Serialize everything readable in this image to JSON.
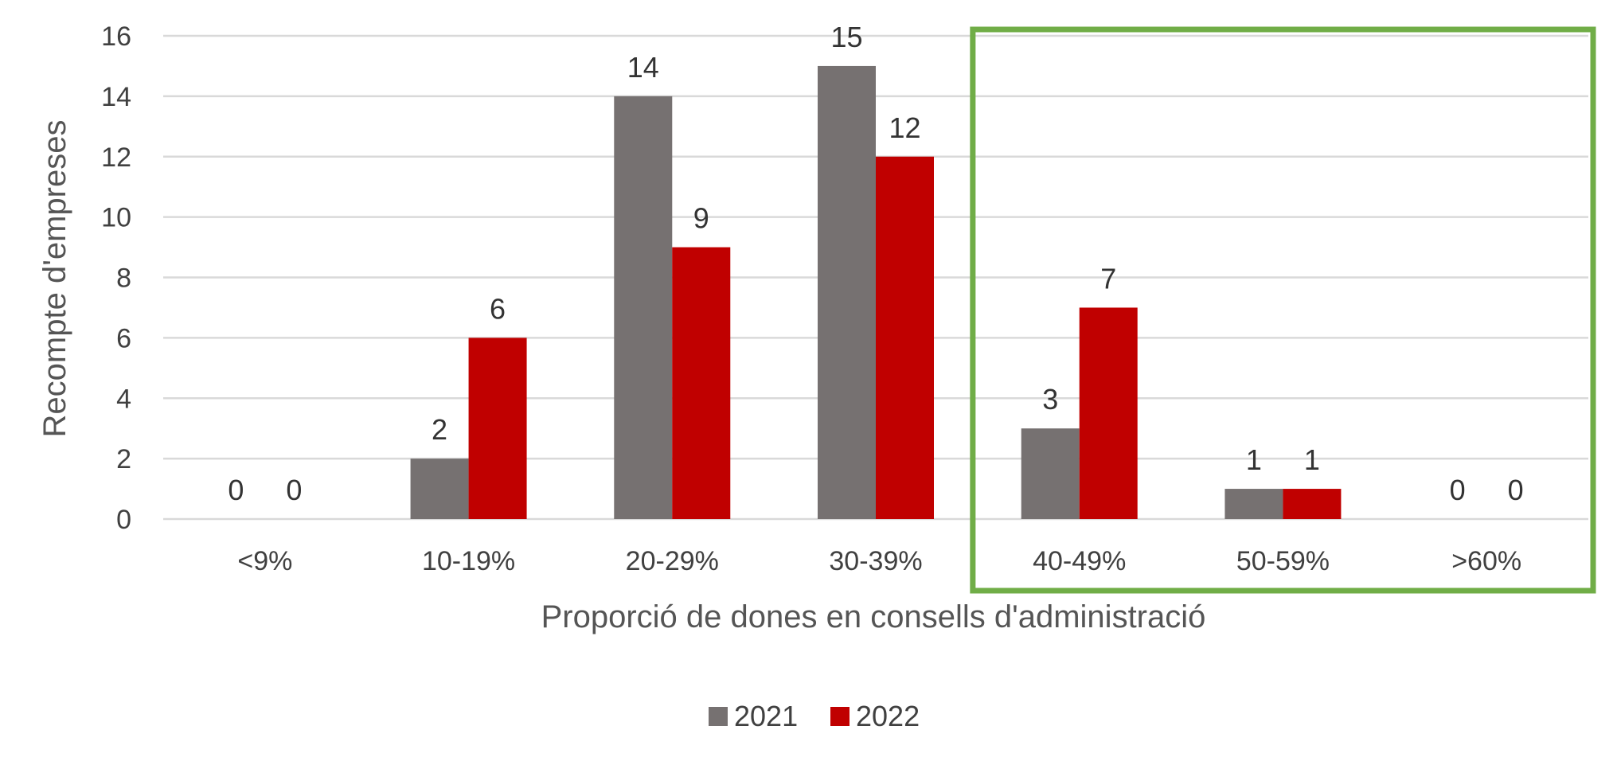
{
  "chart_data": {
    "type": "bar",
    "title": "",
    "xlabel": "Proporció de dones en consells d'administració",
    "ylabel": "Recompte d'empreses",
    "categories": [
      "<9%",
      "10-19%",
      "20-29%",
      "30-39%",
      "40-49%",
      "50-59%",
      ">60%"
    ],
    "series": [
      {
        "name": "2021",
        "values": [
          0,
          2,
          14,
          15,
          3,
          1,
          0
        ],
        "color": "#767171"
      },
      {
        "name": "2022",
        "values": [
          0,
          6,
          9,
          12,
          7,
          1,
          0
        ],
        "color": "#C00000"
      }
    ],
    "ylim": [
      0,
      16
    ],
    "yticks": [
      0,
      2,
      4,
      6,
      8,
      10,
      12,
      14,
      16
    ],
    "grid": true,
    "legend": "bottom-center",
    "highlight": {
      "from_category": "40-49%",
      "to_category": ">60%",
      "color": "#70AD47"
    }
  }
}
